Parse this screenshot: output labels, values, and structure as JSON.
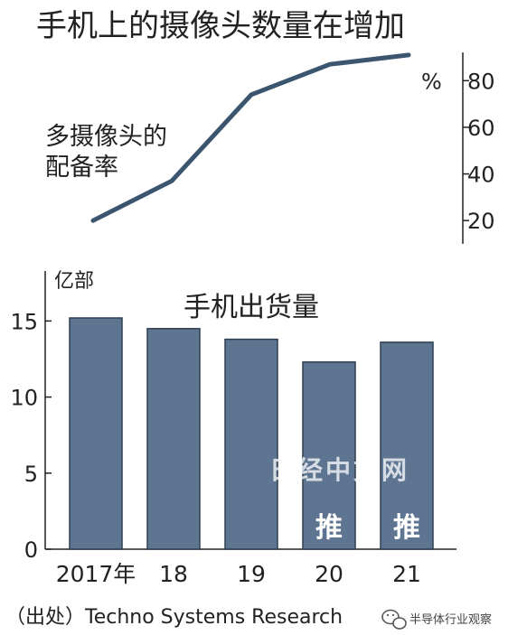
{
  "title": "手机上的摄像头数量在增加",
  "colors": {
    "bar_fill": "#5d7590",
    "bar_stroke": "#2f3e50",
    "line": "#3b556e",
    "axis": "#222222",
    "text": "#222222"
  },
  "chart_data": [
    {
      "type": "line",
      "label": "多摄像头的配备率",
      "label_lines": [
        "多摄像头的",
        "配备率"
      ],
      "unit": "%",
      "x": [
        "2017",
        "2018",
        "2019",
        "2020",
        "2021"
      ],
      "values": [
        20,
        37,
        74,
        87,
        91
      ],
      "ylim": [
        10,
        96
      ],
      "yticks": [
        20,
        40,
        60,
        80
      ],
      "axis_side": "right"
    },
    {
      "type": "bar",
      "title": "手机出货量",
      "ylabel": "亿部",
      "categories": [
        "2017年",
        "18",
        "19",
        "20",
        "21"
      ],
      "values": [
        15.2,
        14.5,
        13.8,
        12.3,
        13.6
      ],
      "ylim": [
        0,
        19
      ],
      "yticks": [
        0,
        5,
        10,
        15
      ],
      "annotations": [
        {
          "category_index": 3,
          "text": "推"
        },
        {
          "category_index": 4,
          "text": "推"
        }
      ]
    }
  ],
  "source": "（出处）Techno Systems Research",
  "watermark": "日经中文网",
  "wechat_label": "半导体行业观察",
  "wechat_icon": "wechat-icon"
}
